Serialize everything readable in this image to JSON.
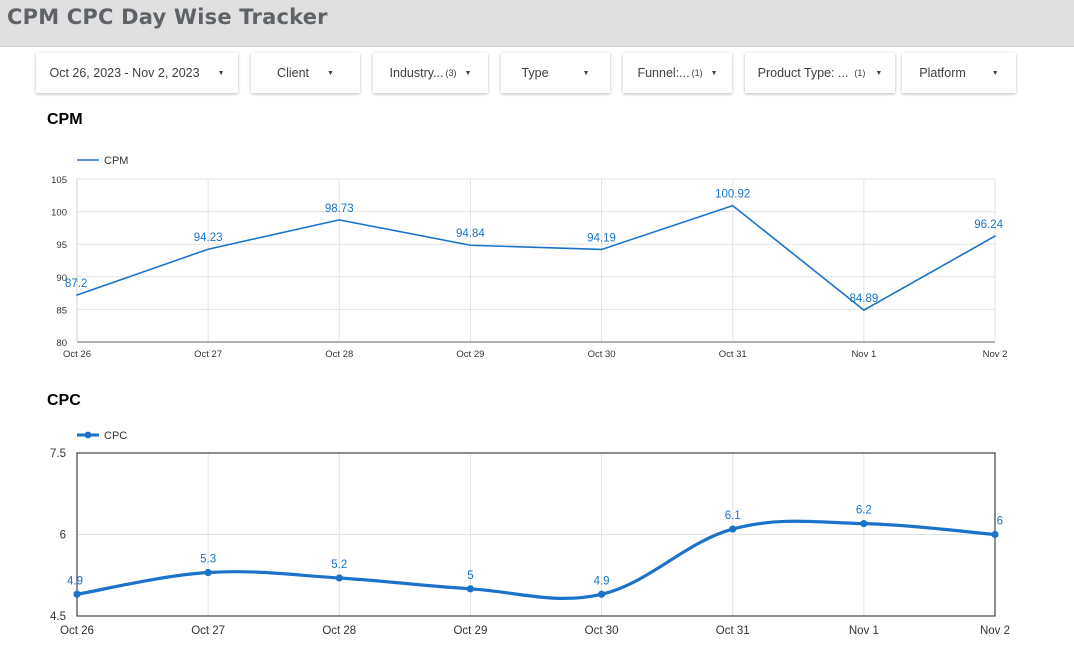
{
  "header": {
    "title": "CPM CPC Day Wise Tracker"
  },
  "filters": [
    {
      "label": "Oct 26, 2023 - Nov 2, 2023",
      "count": ""
    },
    {
      "label": "Client",
      "count": ""
    },
    {
      "label": "Industry...",
      "count": "(3)"
    },
    {
      "label": "Type",
      "count": ""
    },
    {
      "label": "Funnel:...",
      "count": "(1)"
    },
    {
      "label": "Product Type: ...",
      "count": "(1)"
    },
    {
      "label": "Platform",
      "count": ""
    }
  ],
  "sections": {
    "cpm_title": "CPM",
    "cpc_title": "CPC"
  },
  "chart_data": [
    {
      "type": "line",
      "title": "CPM",
      "categories": [
        "Oct 26",
        "Oct 27",
        "Oct 28",
        "Oct 29",
        "Oct 30",
        "Oct 31",
        "Nov 1",
        "Nov 2"
      ],
      "series": [
        {
          "name": "CPM",
          "values": [
            87.2,
            94.23,
            98.73,
            94.84,
            94.19,
            100.92,
            84.89,
            96.24
          ],
          "color": "#1a73c8"
        }
      ],
      "yticks": [
        80,
        85,
        90,
        95,
        100,
        105
      ],
      "ylim": [
        80,
        105
      ],
      "grid": true,
      "legend": "top-left",
      "data_labels": true,
      "smooth": false
    },
    {
      "type": "line",
      "title": "CPC",
      "categories": [
        "Oct 26",
        "Oct 27",
        "Oct 28",
        "Oct 29",
        "Oct 30",
        "Oct 31",
        "Nov 1",
        "Nov 2"
      ],
      "series": [
        {
          "name": "CPC",
          "values": [
            4.9,
            5.3,
            5.2,
            5,
            4.9,
            6.1,
            6.2,
            6
          ],
          "color": "#1a73c8"
        }
      ],
      "yticks": [
        "4.5",
        "6",
        "7.5"
      ],
      "ylim": [
        4.5,
        7.5
      ],
      "grid": true,
      "legend": "top-left",
      "data_labels": true,
      "smooth": true,
      "markers": true
    }
  ]
}
